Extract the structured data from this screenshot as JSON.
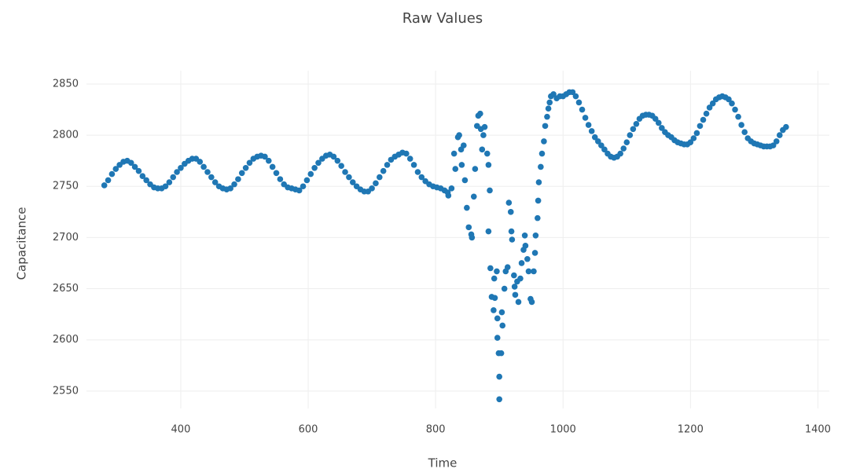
{
  "chart_data": {
    "type": "scatter",
    "title": "Raw Values",
    "x_label": "Time",
    "y_label": "Capacitance",
    "color": "#1f77b4",
    "grid": true,
    "xlim": [
      252,
      1418
    ],
    "ylim": [
      2533,
      2863
    ],
    "xticks": [
      400,
      600,
      800,
      1000,
      1200,
      1400
    ],
    "yticks": [
      2550,
      2600,
      2650,
      2700,
      2750,
      2800,
      2850
    ],
    "x": [
      280,
      286,
      292,
      298,
      304,
      310,
      316,
      322,
      328,
      334,
      340,
      346,
      352,
      358,
      364,
      370,
      376,
      382,
      388,
      394,
      400,
      406,
      412,
      418,
      424,
      430,
      436,
      442,
      448,
      454,
      460,
      466,
      472,
      478,
      484,
      490,
      496,
      502,
      508,
      514,
      520,
      526,
      532,
      538,
      544,
      550,
      556,
      562,
      568,
      574,
      580,
      586,
      592,
      598,
      604,
      610,
      616,
      622,
      628,
      634,
      640,
      646,
      652,
      658,
      664,
      670,
      676,
      682,
      688,
      694,
      700,
      706,
      712,
      718,
      724,
      730,
      736,
      742,
      748,
      754,
      760,
      766,
      772,
      778,
      784,
      790,
      796,
      802,
      808,
      814,
      820,
      819,
      825,
      831,
      835,
      837,
      829,
      840,
      841,
      844,
      846,
      849,
      852,
      856,
      857,
      860,
      862,
      865,
      867,
      870,
      871,
      873,
      875,
      877,
      881,
      883,
      885,
      883,
      886,
      888,
      891,
      893,
      892,
      896,
      897,
      897,
      899,
      900,
      900,
      903,
      904,
      905,
      908,
      910,
      913,
      915,
      918,
      919,
      920,
      923,
      924,
      925,
      928,
      930,
      933,
      935,
      938,
      940,
      941,
      944,
      946,
      949,
      951,
      954,
      956,
      957,
      960,
      961,
      962,
      965,
      967,
      970,
      972,
      975,
      977,
      979,
      981,
      985,
      990,
      995,
      1000,
      1005,
      1010,
      1015,
      1020,
      1025,
      1030,
      1035,
      1040,
      1045,
      1050,
      1055,
      1060,
      1065,
      1070,
      1075,
      1080,
      1085,
      1090,
      1095,
      1100,
      1105,
      1110,
      1115,
      1120,
      1125,
      1130,
      1135,
      1140,
      1145,
      1150,
      1155,
      1160,
      1165,
      1170,
      1175,
      1180,
      1185,
      1190,
      1195,
      1200,
      1205,
      1210,
      1215,
      1220,
      1225,
      1230,
      1235,
      1240,
      1245,
      1250,
      1255,
      1260,
      1265,
      1270,
      1275,
      1280,
      1285,
      1290,
      1295,
      1300,
      1305,
      1310,
      1315,
      1320,
      1325,
      1330,
      1335,
      1340,
      1345,
      1350
    ],
    "values": [
      2751,
      2756,
      2762,
      2767,
      2771,
      2774,
      2775,
      2773,
      2769,
      2765,
      2760,
      2756,
      2752,
      2749,
      2748,
      2748,
      2750,
      2754,
      2759,
      2764,
      2768,
      2772,
      2775,
      2777,
      2777,
      2774,
      2769,
      2764,
      2759,
      2754,
      2750,
      2748,
      2747,
      2748,
      2752,
      2757,
      2763,
      2768,
      2773,
      2777,
      2779,
      2780,
      2779,
      2775,
      2769,
      2763,
      2757,
      2752,
      2749,
      2748,
      2747,
      2746,
      2750,
      2756,
      2762,
      2768,
      2773,
      2777,
      2780,
      2781,
      2779,
      2775,
      2770,
      2764,
      2759,
      2754,
      2750,
      2747,
      2745,
      2745,
      2748,
      2753,
      2759,
      2765,
      2771,
      2776,
      2779,
      2781,
      2783,
      2782,
      2777,
      2771,
      2764,
      2759,
      2755,
      2752,
      2750,
      2749,
      2748,
      2746,
      2741,
      2744,
      2748,
      2767,
      2798,
      2800,
      2782,
      2786,
      2771,
      2790,
      2756,
      2729,
      2710,
      2703,
      2700,
      2740,
      2767,
      2809,
      2819,
      2821,
      2806,
      2786,
      2800,
      2808,
      2782,
      2771,
      2746,
      2706,
      2670,
      2642,
      2629,
      2641,
      2660,
      2667,
      2621,
      2602,
      2587,
      2564,
      2542,
      2587,
      2627,
      2614,
      2650,
      2667,
      2671,
      2734,
      2725,
      2706,
      2698,
      2663,
      2652,
      2644,
      2657,
      2637,
      2660,
      2675,
      2688,
      2702,
      2692,
      2679,
      2667,
      2640,
      2637,
      2667,
      2685,
      2702,
      2719,
      2736,
      2754,
      2769,
      2782,
      2794,
      2809,
      2818,
      2826,
      2832,
      2838,
      2840,
      2836,
      2838,
      2838,
      2840,
      2842,
      2842,
      2838,
      2832,
      2825,
      2817,
      2810,
      2804,
      2798,
      2794,
      2790,
      2786,
      2782,
      2779,
      2778,
      2779,
      2782,
      2787,
      2793,
      2800,
      2806,
      2811,
      2816,
      2819,
      2820,
      2820,
      2819,
      2816,
      2812,
      2807,
      2803,
      2800,
      2798,
      2795,
      2793,
      2792,
      2791,
      2791,
      2793,
      2797,
      2802,
      2809,
      2815,
      2821,
      2827,
      2831,
      2835,
      2837,
      2838,
      2837,
      2835,
      2831,
      2825,
      2818,
      2810,
      2803,
      2797,
      2794,
      2792,
      2791,
      2790,
      2789,
      2789,
      2789,
      2790,
      2794,
      2800,
      2805,
      2808
    ]
  }
}
